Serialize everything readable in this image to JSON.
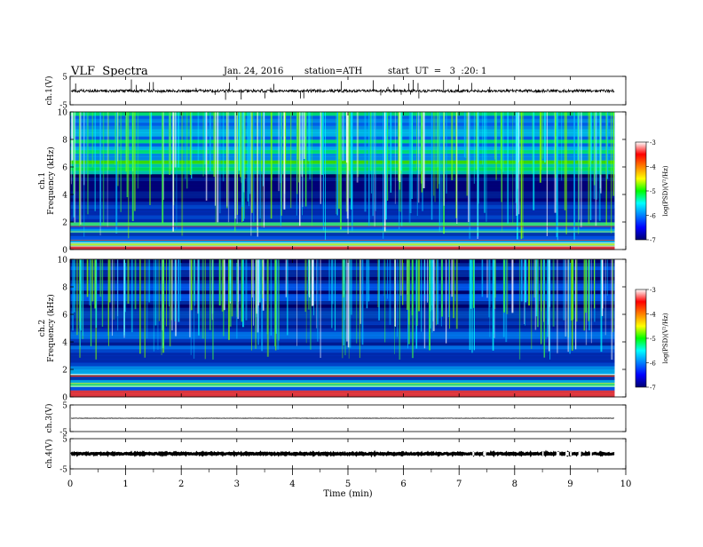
{
  "header": {
    "title": "VLF  Spectra",
    "date": "Jan. 24, 2016",
    "station": "station=ATH",
    "start": "start  UT  =   3  :20: 1"
  },
  "chart_data": {
    "type": "heatmap",
    "x_axis": {
      "label": "Time  (min)",
      "range": [
        0,
        10
      ],
      "ticks": [
        "0",
        "1",
        "2",
        "3",
        "4",
        "5",
        "6",
        "7",
        "8",
        "9",
        "10"
      ],
      "data_end": 9.8
    },
    "panels": [
      {
        "id": "ch1-wave",
        "ylabel": "ch.1(V)",
        "yrange": [
          -5,
          5
        ],
        "ticks": [
          "5",
          "-5"
        ],
        "level": -0.2,
        "noise": 0.9
      },
      {
        "id": "ch1-spec",
        "ylabel": [
          "ch.1",
          "Frequency  (kHz)"
        ],
        "yrange": [
          0,
          10
        ],
        "ticks": [
          "0",
          "2",
          "4",
          "6",
          "8",
          "10"
        ],
        "hf_activity": 0.9
      },
      {
        "id": "ch2-spec",
        "ylabel": [
          "ch.2",
          "Frequency  (kHz)"
        ],
        "yrange": [
          0,
          10
        ],
        "ticks": [
          "0",
          "2",
          "4",
          "6",
          "8",
          "10"
        ],
        "hf_activity": 0.55
      },
      {
        "id": "ch3-wave",
        "ylabel": "ch.3(V)",
        "yrange": [
          -5,
          5
        ],
        "ticks": [
          "5",
          "-5"
        ],
        "level": 0.0,
        "noise": 0.1
      },
      {
        "id": "ch4-wave",
        "ylabel": "ch.4(V)",
        "yrange": [
          -5,
          5
        ],
        "ticks": [
          "5",
          "-5"
        ],
        "level": 0.0,
        "noise": 0.35
      }
    ],
    "colorbar": {
      "label": "log(PSD)(V²/Hz)",
      "range": [
        -7,
        -3
      ],
      "ticks": [
        "-3",
        "-4",
        "-5",
        "-6",
        "-7"
      ],
      "colors": [
        "#000070",
        "#0000ff",
        "#0080ff",
        "#00ffff",
        "#00ff00",
        "#ffff00",
        "#ff8000",
        "#ff0000",
        "#ffffff"
      ]
    }
  }
}
